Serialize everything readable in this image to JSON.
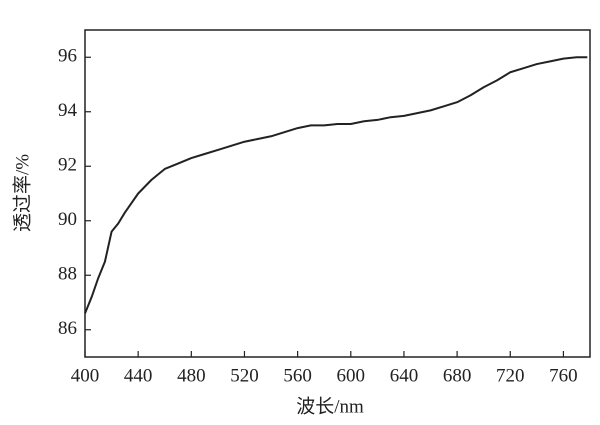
{
  "chart_data": {
    "type": "line",
    "x_label": "波长/nm",
    "y_label": "透过率/%",
    "x": [
      400,
      405,
      410,
      415,
      420,
      425,
      430,
      440,
      450,
      460,
      470,
      480,
      490,
      500,
      510,
      520,
      530,
      540,
      550,
      560,
      570,
      580,
      590,
      600,
      610,
      620,
      630,
      640,
      650,
      660,
      670,
      680,
      690,
      700,
      710,
      720,
      730,
      740,
      750,
      760,
      770,
      778
    ],
    "series": [
      {
        "name": "透过率",
        "color": "#222222",
        "values": [
          86.6,
          87.2,
          87.9,
          88.5,
          89.6,
          89.9,
          90.3,
          91.0,
          91.5,
          91.9,
          92.1,
          92.3,
          92.45,
          92.6,
          92.75,
          92.9,
          93.0,
          93.1,
          93.25,
          93.4,
          93.5,
          93.5,
          93.55,
          93.55,
          93.65,
          93.7,
          93.8,
          93.85,
          93.95,
          94.05,
          94.2,
          94.35,
          94.6,
          94.9,
          95.15,
          95.45,
          95.6,
          95.75,
          95.85,
          95.95,
          96.0,
          96.0
        ]
      }
    ],
    "xlim": [
      400,
      780
    ],
    "ylim": [
      85,
      97
    ],
    "xticks": [
      400,
      440,
      480,
      520,
      560,
      600,
      640,
      680,
      720,
      760
    ],
    "yticks": [
      86,
      88,
      90,
      92,
      94,
      96
    ]
  }
}
